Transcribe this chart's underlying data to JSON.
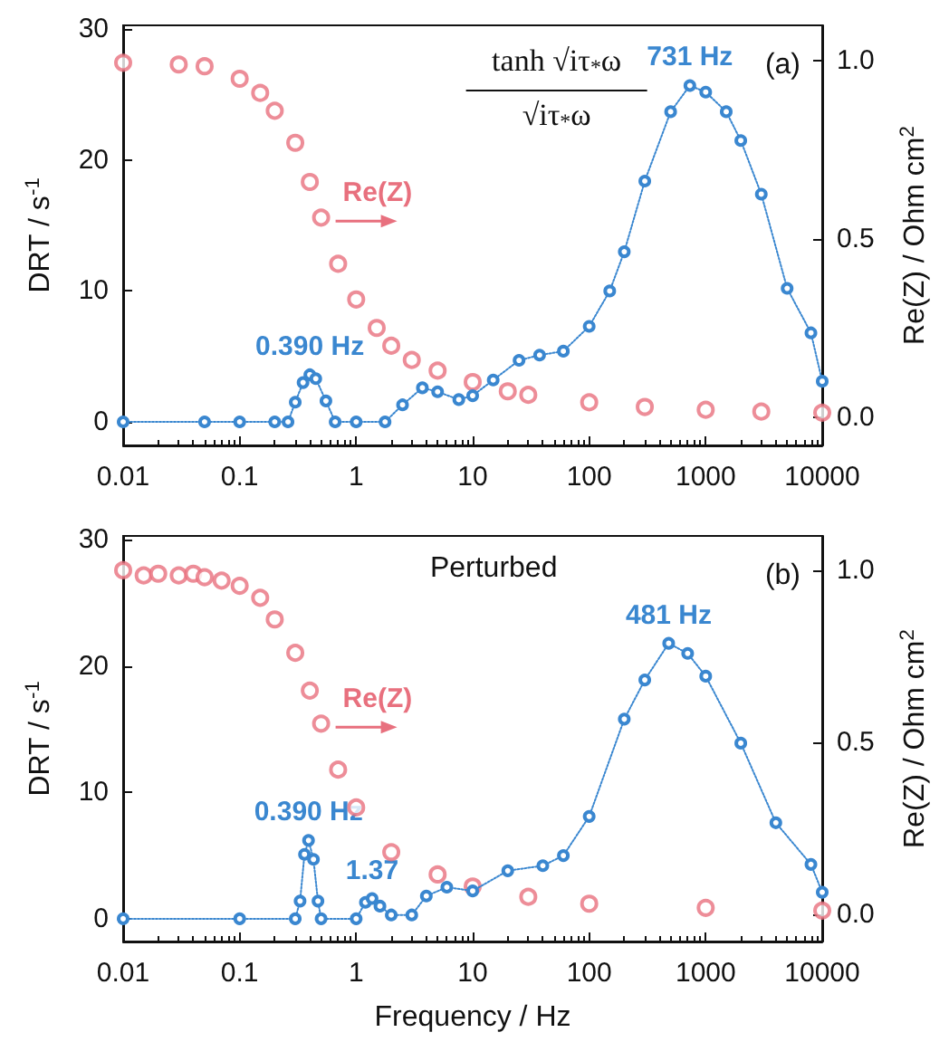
{
  "chart_data": [
    {
      "type": "scatter",
      "ylabel": "DRT / s$^{-1}$",
      "y2label": "Re(Z) / Ohm cm$^{2}$",
      "xlim": [
        0.01,
        10000
      ],
      "xticks": [
        0.01,
        0.1,
        1,
        10,
        100,
        1000,
        10000
      ],
      "log": "x",
      "ylim": [
        -1.8,
        30.3
      ],
      "yticks": [
        0,
        10,
        20,
        30
      ],
      "y2lim": [
        -0.08,
        1.1
      ],
      "y2ticks": [
        {
          "value": 0,
          "label": "0.0"
        },
        {
          "value": 0.5,
          "label": "0.5"
        },
        {
          "value": 1,
          "label": "1.0"
        }
      ],
      "grid": false,
      "legend": false,
      "marker": "circle",
      "series": [
        {
          "color": "#3a87d0",
          "type": "line",
          "line_style": "dotted",
          "x": [
            0.01,
            0.05,
            0.1,
            0.2,
            0.26,
            0.3,
            0.35,
            0.4,
            0.45,
            0.55,
            0.66,
            1,
            1.77,
            2.5,
            3.7,
            5,
            7.6,
            10,
            15,
            25,
            37.5,
            60,
            100,
            150,
            200,
            300,
            500,
            731,
            1000,
            1500,
            2000,
            3000,
            5000,
            8000,
            10000
          ],
          "values": [
            0,
            0,
            0,
            0,
            0,
            1.5,
            3.0,
            3.6,
            3.3,
            1.6,
            0,
            0,
            0,
            1.3,
            2.6,
            2.3,
            1.7,
            2.0,
            3.2,
            4.7,
            5.1,
            5.4,
            7.3,
            10,
            13,
            18.4,
            23.7,
            25.7,
            25.2,
            23.7,
            21.5,
            17.4,
            10.2,
            6.8,
            3.1
          ]
        },
        {
          "name": "Re(Z)",
          "color": "#e8707e",
          "axis": "y2",
          "x": [
            0.01,
            0.03,
            0.05,
            0.1,
            0.15,
            0.2,
            0.3,
            0.4,
            0.5,
            0.7,
            1,
            1.5,
            2,
            3,
            5,
            10,
            20,
            30,
            100,
            300,
            1000,
            3000,
            10000
          ],
          "values": [
            0.995,
            0.99,
            0.985,
            0.95,
            0.91,
            0.86,
            0.77,
            0.66,
            0.56,
            0.43,
            0.33,
            0.25,
            0.2,
            0.16,
            0.13,
            0.098,
            0.072,
            0.062,
            0.041,
            0.028,
            0.02,
            0.015,
            0.012
          ]
        }
      ],
      "annotations": [
        "(a)",
        "tanh √iτ$_{*}$ω",
        "√iτ$_{*}$ω",
        {
          "text": "731 Hz",
          "x": 731,
          "y": 25.7
        },
        {
          "text": "0.390 Hz",
          "x": 0.4,
          "y": 3.6
        }
      ]
    },
    {
      "type": "scatter",
      "ylabel": "DRT / s$^{-1}$",
      "y2label": "Re(Z) / Ohm cm$^{2}$",
      "xlabel": "Frequency / Hz",
      "xlim": [
        0.01,
        10000
      ],
      "xticks": [
        0.01,
        0.1,
        1,
        10,
        100,
        1000,
        10000
      ],
      "log": "x",
      "ylim": [
        -1.8,
        30.3
      ],
      "yticks": [
        0,
        10,
        20,
        30
      ],
      "y2lim": [
        -0.08,
        1.1
      ],
      "y2ticks": [
        {
          "value": 0,
          "label": "0.0"
        },
        {
          "value": 0.5,
          "label": "0.5"
        },
        {
          "value": 1,
          "label": "1.0"
        }
      ],
      "grid": false,
      "legend": false,
      "marker": "circle",
      "series": [
        {
          "color": "#3a87d0",
          "type": "line",
          "line_style": "dotted",
          "x": [
            0.01,
            0.1,
            0.3,
            0.33,
            0.36,
            0.39,
            0.43,
            0.47,
            0.5,
            1,
            1.2,
            1.37,
            1.6,
            2,
            3,
            4,
            6,
            10,
            20,
            40,
            60,
            100,
            200,
            300,
            481,
            700,
            1000,
            2000,
            4000,
            8000,
            10000
          ],
          "values": [
            0,
            0,
            0,
            1.4,
            5.1,
            6.2,
            4.7,
            1.4,
            0,
            0,
            1.3,
            1.6,
            1.0,
            0.3,
            0.3,
            1.8,
            2.5,
            2.2,
            3.8,
            4.2,
            5.0,
            8.1,
            15.8,
            18.9,
            21.8,
            21.0,
            19.2,
            13.9,
            7.6,
            4.3,
            2.1
          ]
        },
        {
          "name": "Re(Z)",
          "color": "#e8707e",
          "axis": "y2",
          "x": [
            0.01,
            0.015,
            0.02,
            0.03,
            0.04,
            0.05,
            0.07,
            0.1,
            0.15,
            0.2,
            0.3,
            0.4,
            0.5,
            0.7,
            1,
            2,
            5,
            10,
            30,
            100,
            1000,
            10000
          ],
          "values": [
            1.0,
            0.985,
            0.99,
            0.985,
            0.99,
            0.98,
            0.97,
            0.955,
            0.92,
            0.857,
            0.76,
            0.65,
            0.554,
            0.42,
            0.31,
            0.18,
            0.115,
            0.08,
            0.05,
            0.03,
            0.018,
            0.01
          ]
        }
      ],
      "annotations": [
        "(b)",
        "Perturbed",
        {
          "text": "481 Hz",
          "x": 481,
          "y": 21.8
        },
        {
          "text": "0.390 Hz",
          "x": 0.39,
          "y": 6.2
        },
        {
          "text": "1.37",
          "x": 1.37,
          "y": 1.6
        }
      ]
    }
  ]
}
